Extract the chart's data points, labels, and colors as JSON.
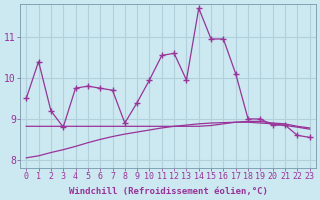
{
  "x_vals": [
    0,
    1,
    2,
    3,
    4,
    5,
    6,
    7,
    8,
    9,
    10,
    11,
    12,
    13,
    14,
    15,
    16,
    17,
    18,
    19,
    20,
    21,
    22,
    23
  ],
  "line1_y": [
    9.5,
    10.4,
    9.2,
    8.8,
    9.75,
    9.8,
    9.75,
    9.7,
    8.9,
    9.4,
    9.95,
    10.55,
    10.6,
    9.95,
    11.7,
    10.95,
    10.95,
    10.1,
    9.0,
    9.0,
    8.85,
    8.85,
    8.6,
    8.55
  ],
  "line2_y": [
    8.82,
    8.82,
    8.82,
    8.82,
    8.82,
    8.82,
    8.82,
    8.82,
    8.82,
    8.82,
    8.82,
    8.82,
    8.82,
    8.82,
    8.82,
    8.84,
    8.88,
    8.92,
    8.94,
    8.94,
    8.9,
    8.88,
    8.82,
    8.78
  ],
  "line3_y": [
    8.05,
    8.1,
    8.18,
    8.25,
    8.33,
    8.42,
    8.5,
    8.57,
    8.63,
    8.68,
    8.73,
    8.78,
    8.82,
    8.85,
    8.88,
    8.9,
    8.91,
    8.92,
    8.92,
    8.9,
    8.88,
    8.84,
    8.8,
    8.75
  ],
  "color_main": "#993399",
  "bg_color": "#cce8f0",
  "grid_color": "#b0d0dc",
  "xlabel": "Windchill (Refroidissement éolien,°C)",
  "ylim": [
    7.8,
    11.8
  ],
  "xlim_min": -0.5,
  "xlim_max": 23.5,
  "yticks": [
    8,
    9,
    10,
    11
  ],
  "xticks": [
    0,
    1,
    2,
    3,
    4,
    5,
    6,
    7,
    8,
    9,
    10,
    11,
    12,
    13,
    14,
    15,
    16,
    17,
    18,
    19,
    20,
    21,
    22,
    23
  ],
  "xlabel_fontsize": 6.5,
  "tick_fontsize": 6
}
